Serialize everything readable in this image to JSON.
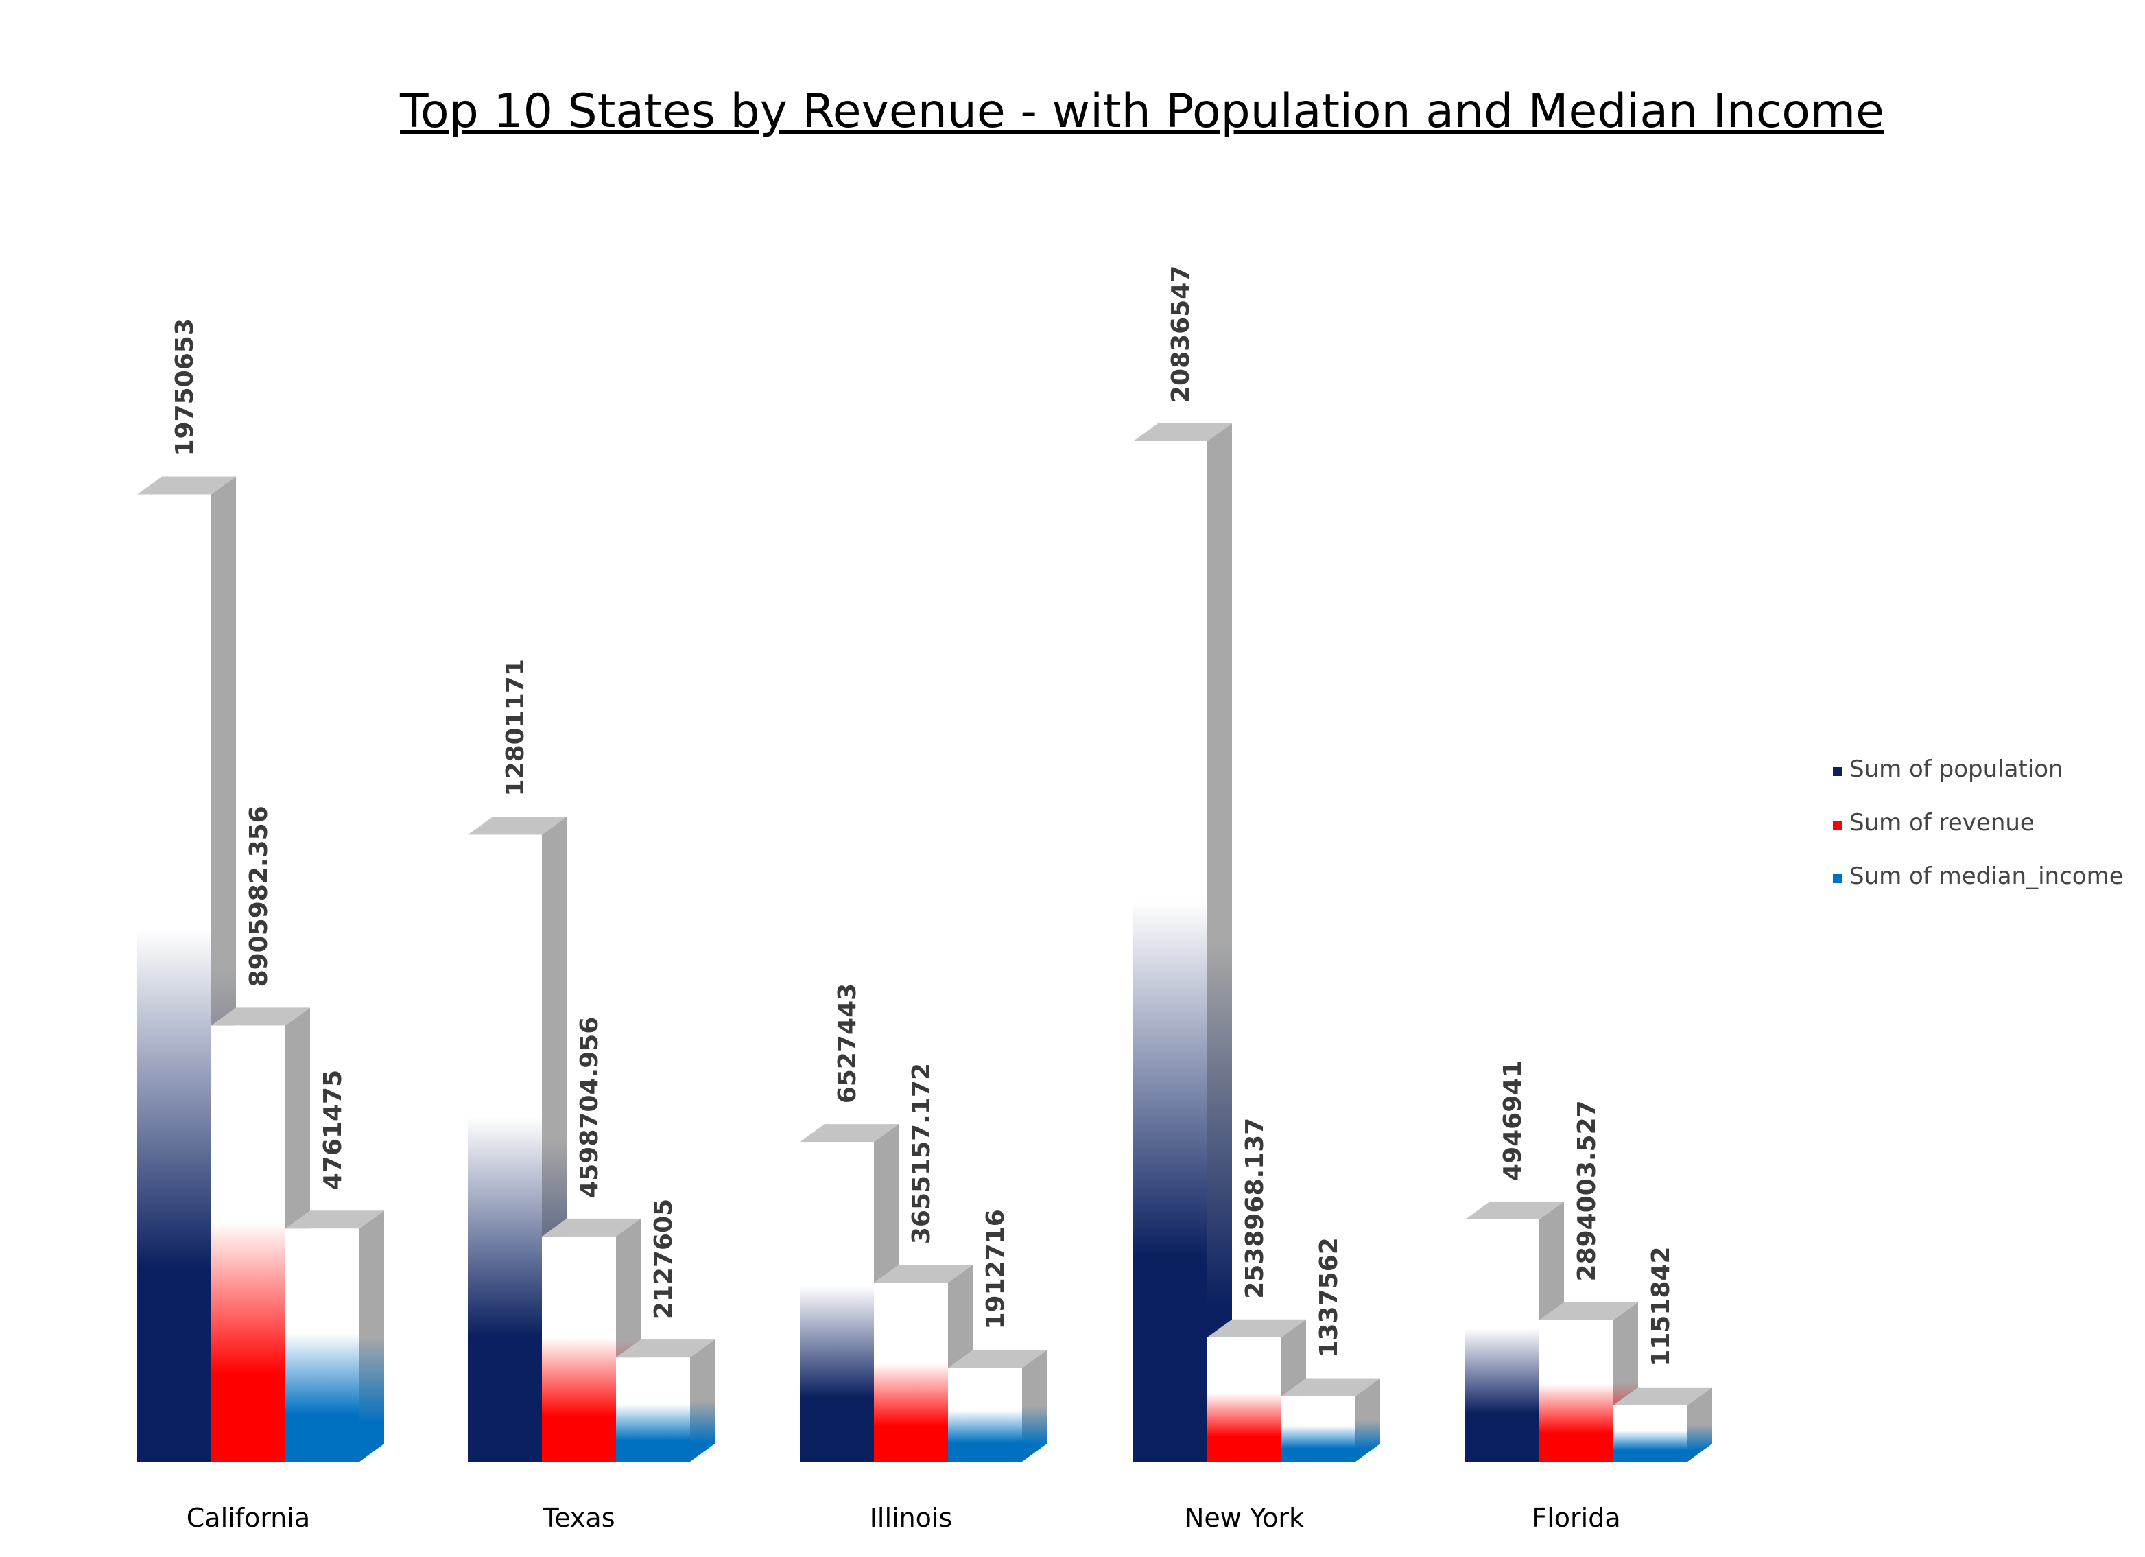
{
  "colors": {
    "population": "#0b2060",
    "revenue": "#ff0000",
    "median_income": "#0070c0",
    "bar_side": "#a8a8a8",
    "bar_top": "#c4c4c4"
  },
  "chart_data": {
    "type": "bar",
    "title": "Top 10 States by Revenue - with Population and Median Income",
    "categories": [
      "California",
      "Texas",
      "Illinois",
      "New York",
      "Florida"
    ],
    "series": [
      {
        "name": "Sum of population",
        "key": "population",
        "values": [
          19750653,
          12801171,
          6527443,
          20836547,
          4946941
        ],
        "labels": [
          "19750653",
          "12801171",
          "6527443",
          "20836547",
          "4946941"
        ]
      },
      {
        "name": "Sum of revenue",
        "key": "revenue",
        "values": [
          8905982.356,
          4598704.956,
          3655157.172,
          2538968.137,
          2894003.527
        ],
        "labels": [
          "8905982.356",
          "4598704.956",
          "3655157.172",
          "2538968.137",
          "2894003.527"
        ]
      },
      {
        "name": "Sum of median_income",
        "key": "median_income",
        "values": [
          4761475,
          2127605,
          1912716,
          1337562,
          1151842
        ],
        "labels": [
          "4761475",
          "2127605",
          "1912716",
          "1337562",
          "1151842"
        ]
      }
    ],
    "ylim": [
      0,
      22000000
    ],
    "grid": false,
    "legend_position": "right",
    "style": "3d-clustered-column"
  }
}
